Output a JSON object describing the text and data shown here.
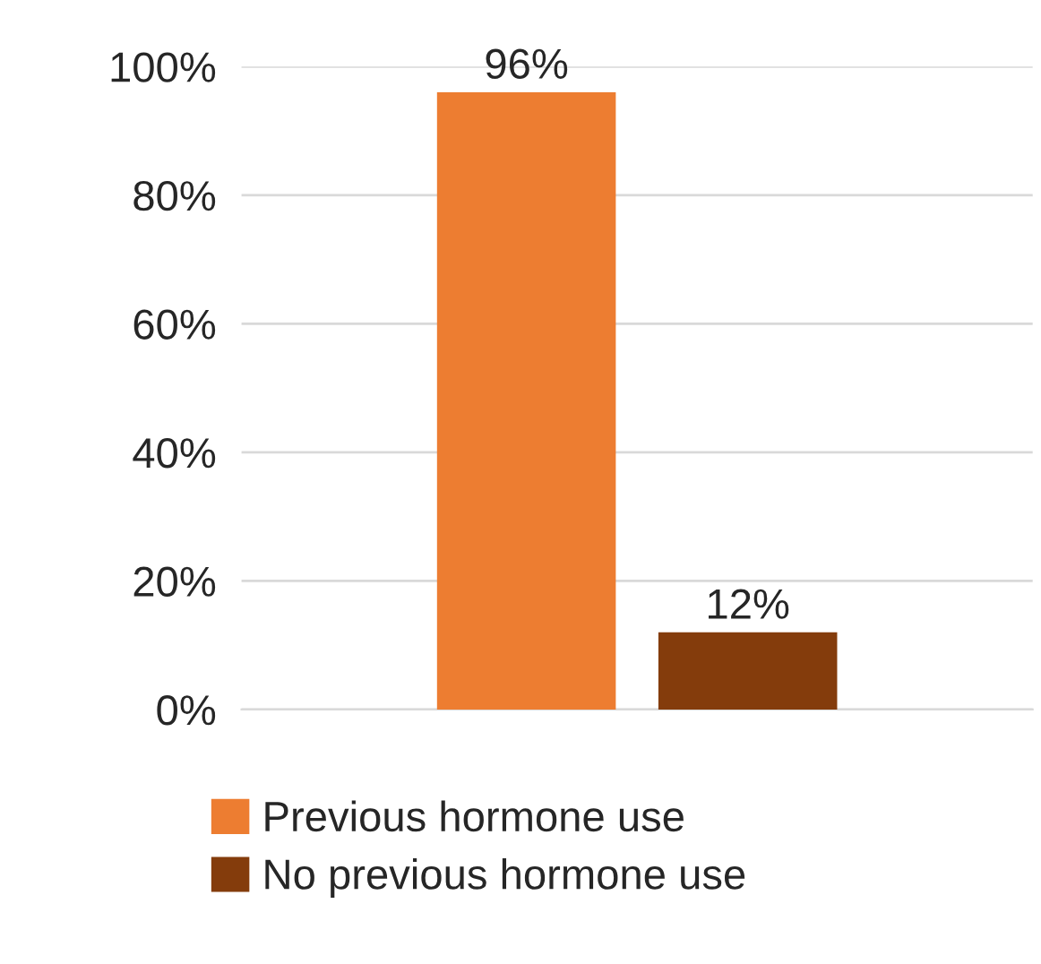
{
  "chart_data": {
    "type": "bar",
    "categories": [
      null
    ],
    "series": [
      {
        "name": "Previous hormone use",
        "color": "#ed7d31",
        "values": [
          96
        ],
        "value_labels": [
          "96%"
        ]
      },
      {
        "name": "No previous hormone use",
        "color": "#843c0c",
        "values": [
          12
        ],
        "value_labels": [
          "12%"
        ]
      }
    ],
    "ylim": [
      0,
      100
    ],
    "yticks": [
      {
        "value": 0,
        "label": "0%"
      },
      {
        "value": 20,
        "label": "20%"
      },
      {
        "value": 40,
        "label": "40%"
      },
      {
        "value": 60,
        "label": "60%"
      },
      {
        "value": 80,
        "label": "80%"
      },
      {
        "value": 100,
        "label": "100%"
      }
    ],
    "grid": "y",
    "legend": "bottom"
  }
}
